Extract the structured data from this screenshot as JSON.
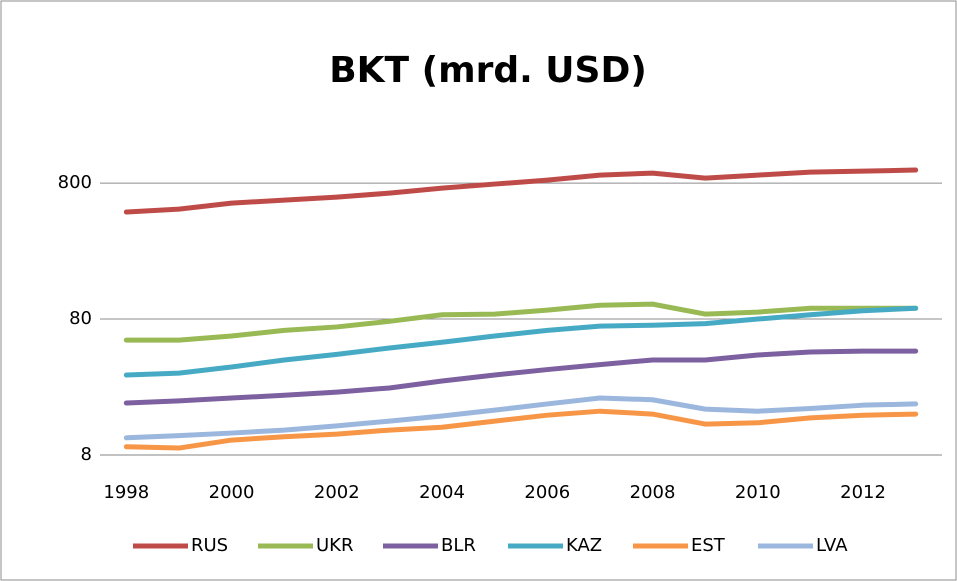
{
  "chart_data": {
    "type": "line",
    "title": "BKT (mrd. USD)",
    "x": [
      1998,
      1999,
      2000,
      2001,
      2002,
      2003,
      2004,
      2005,
      2006,
      2007,
      2008,
      2009,
      2010,
      2011,
      2012,
      2013
    ],
    "xlim": [
      1997.5,
      2013.5
    ],
    "xticks": [
      1998,
      2000,
      2002,
      2004,
      2006,
      2008,
      2010,
      2012
    ],
    "ylim": [
      8,
      2000
    ],
    "yticks": [
      8,
      80,
      800
    ],
    "log_scale_y": true,
    "grid": true,
    "legend": "bottom",
    "series": [
      {
        "name": "RUS",
        "color": "#be4b48",
        "values": [
          490,
          515,
          570,
          600,
          631,
          675,
          735,
          787,
          841,
          916,
          948,
          870,
          916,
          964,
          980,
          998
        ]
      },
      {
        "name": "UKR",
        "color": "#98b954",
        "values": [
          56,
          56,
          60,
          66,
          70,
          77,
          86,
          87,
          93,
          101,
          103,
          87,
          90,
          96,
          96,
          96
        ]
      },
      {
        "name": "BLR",
        "color": "#7d60a0",
        "values": [
          19.3,
          20,
          21,
          22,
          23.2,
          24.9,
          28,
          31,
          34,
          37,
          40,
          40,
          43.5,
          45.8,
          46.5,
          46.5
        ]
      },
      {
        "name": "KAZ",
        "color": "#46aac5",
        "values": [
          31,
          32,
          35.5,
          40,
          44,
          49,
          54,
          60,
          66,
          71,
          72,
          74,
          80,
          86,
          92,
          96
        ]
      },
      {
        "name": "EST",
        "color": "#f79646",
        "values": [
          9.2,
          9.0,
          10.3,
          10.9,
          11.4,
          12.2,
          12.8,
          14.2,
          15.7,
          16.8,
          16,
          13.5,
          13.8,
          15,
          15.7,
          16
        ]
      },
      {
        "name": "LVA",
        "color": "#9bb7dd",
        "values": [
          10.7,
          11.1,
          11.6,
          12.2,
          13.1,
          14.2,
          15.5,
          17.1,
          19,
          21,
          20.4,
          17.4,
          16.8,
          17.6,
          18.6,
          19
        ]
      }
    ]
  }
}
